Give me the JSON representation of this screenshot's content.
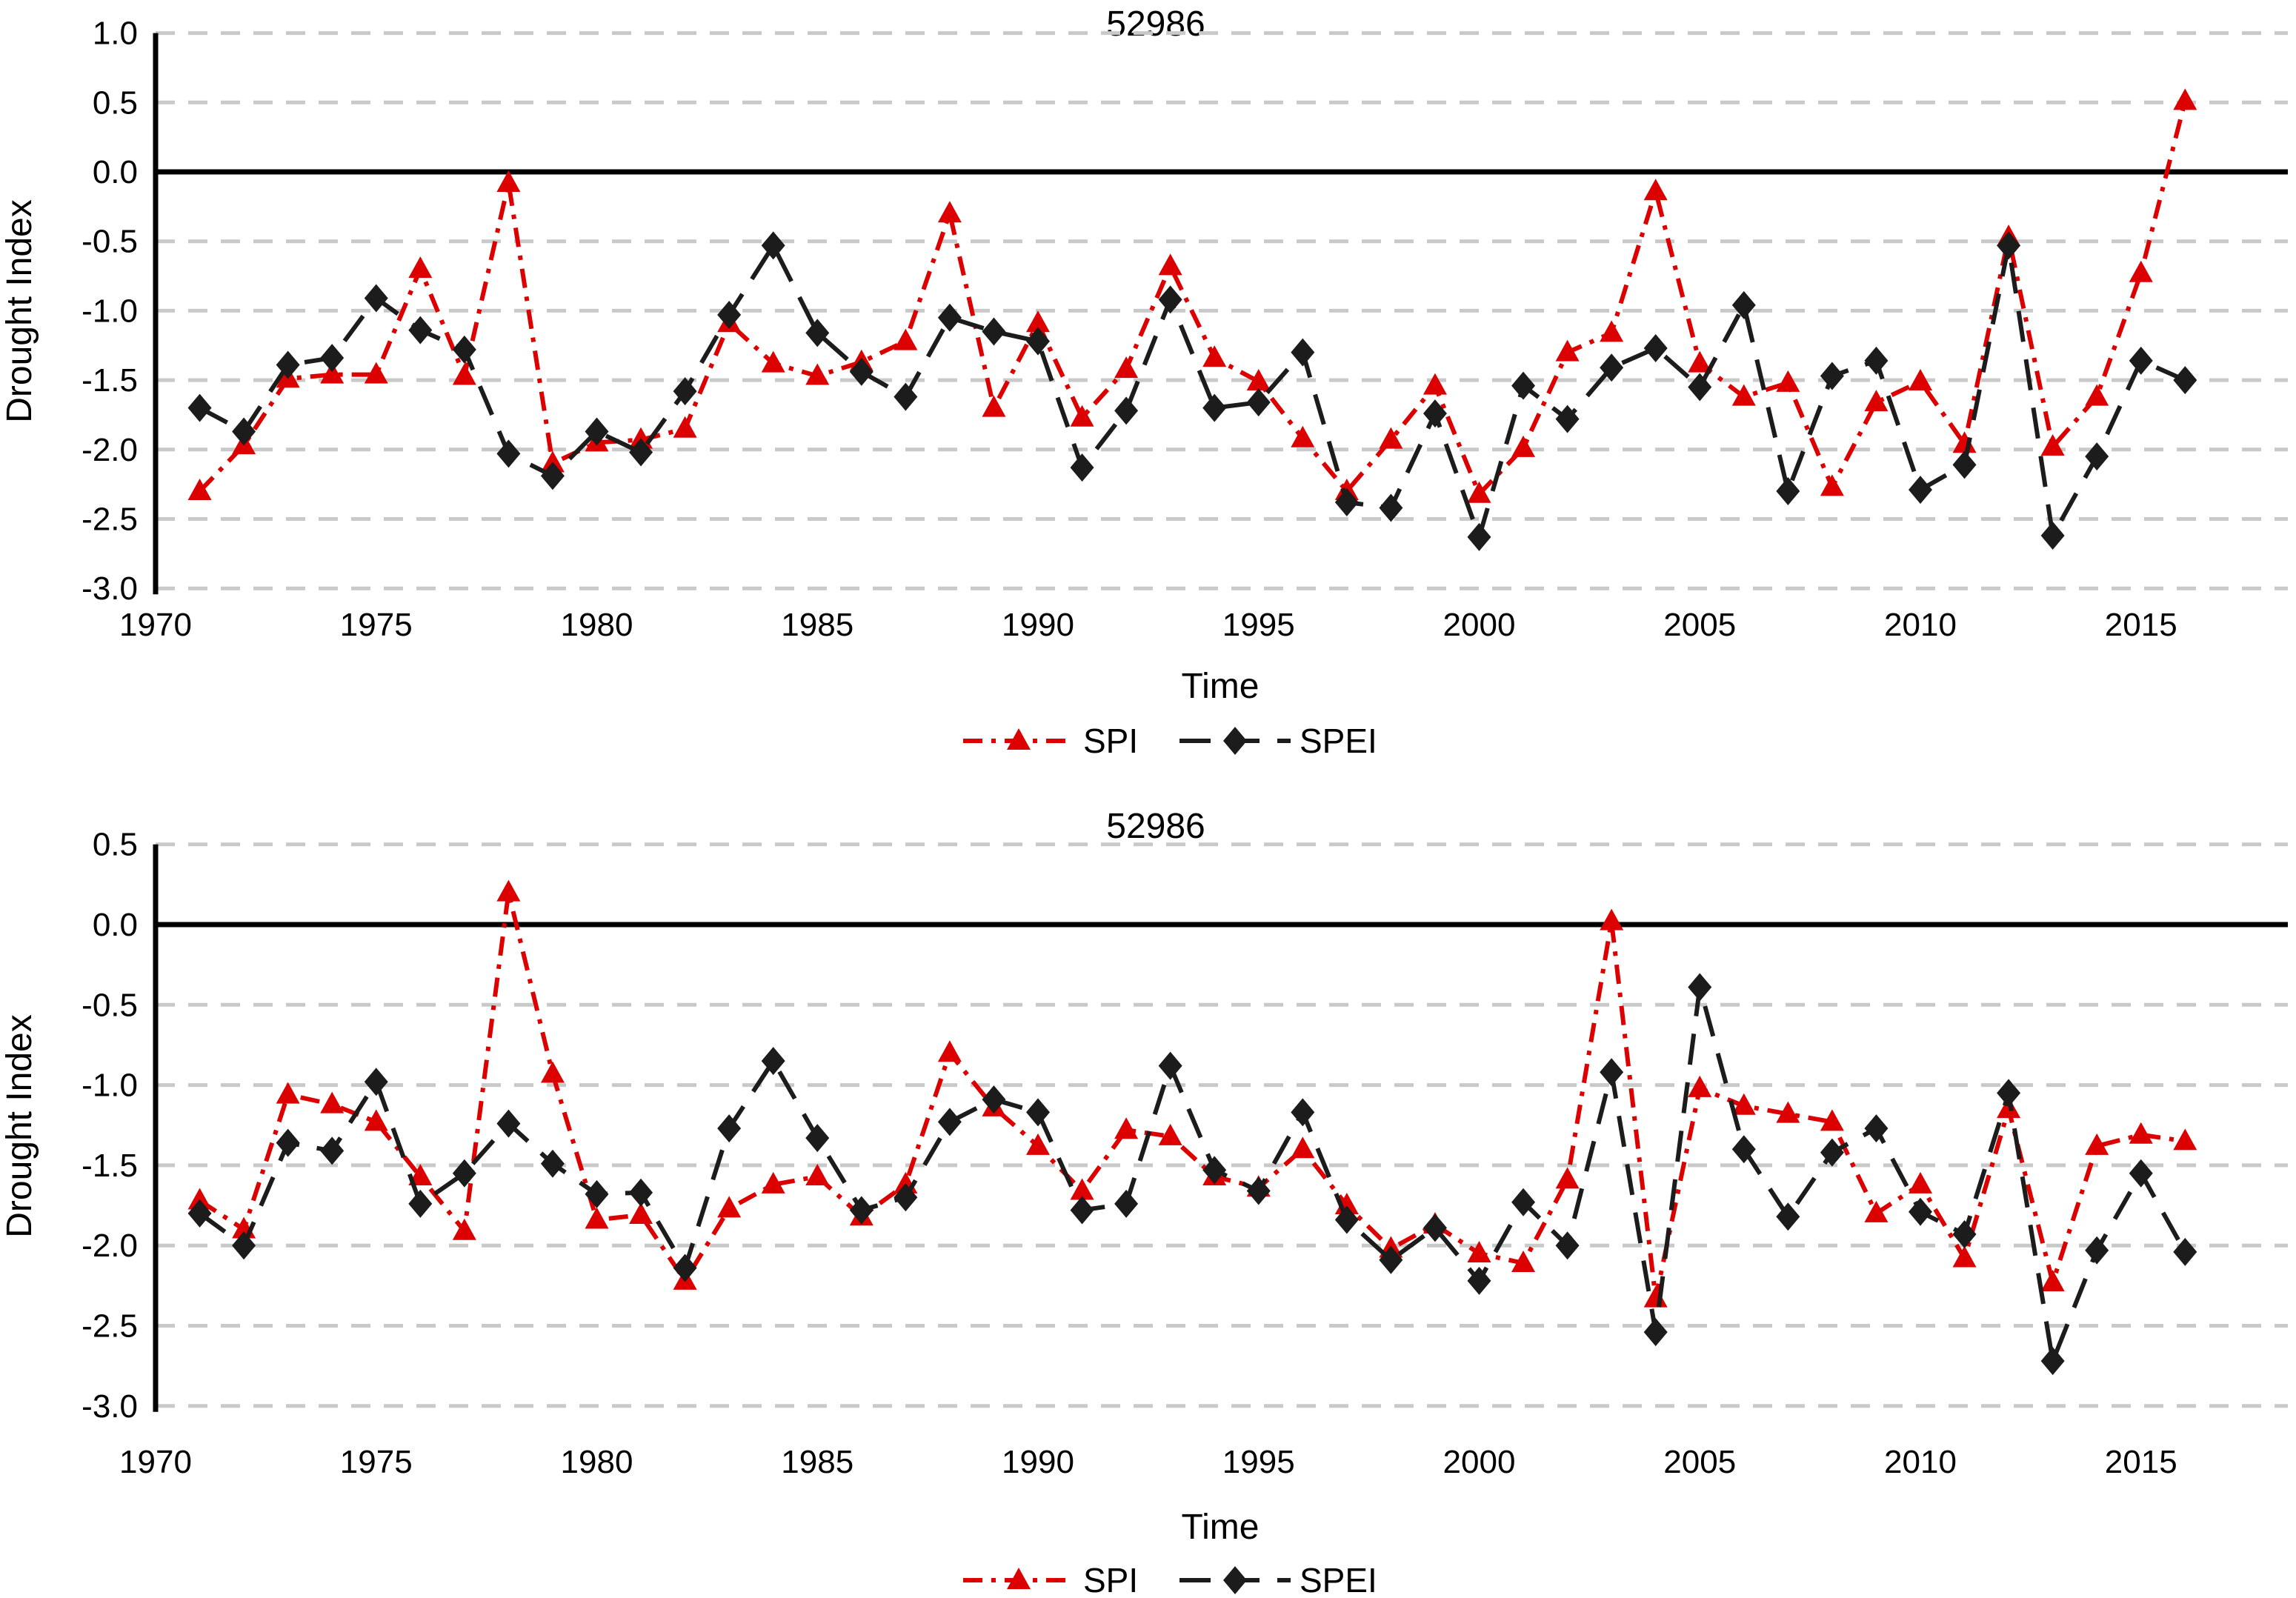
{
  "page": {
    "background": "#ffffff"
  },
  "chart_data": [
    {
      "type": "line",
      "title": "52986",
      "xlabel": "Time",
      "ylabel": "Drought Index",
      "ylim": [
        -3.0,
        1.0
      ],
      "yticks": [
        1.0,
        0.5,
        0.0,
        -0.5,
        -1.0,
        -1.5,
        -2.0,
        -2.5,
        -3.0
      ],
      "xticks": [
        1970,
        1975,
        1980,
        1985,
        1990,
        1995,
        2000,
        2005,
        2010,
        2015
      ],
      "zero_line": true,
      "grid": "dashed-horizontal",
      "grid_color": "#C9C9C9",
      "legend_position": "bottom-center",
      "x": [
        1971,
        1972,
        1973,
        1974,
        1975,
        1976,
        1977,
        1978,
        1979,
        1980,
        1981,
        1982,
        1983,
        1984,
        1985,
        1986,
        1987,
        1988,
        1989,
        1990,
        1991,
        1992,
        1993,
        1994,
        1995,
        1996,
        1997,
        1998,
        1999,
        2000,
        2001,
        2002,
        2003,
        2004,
        2005,
        2006,
        2007,
        2008,
        2009,
        2010,
        2011,
        2012,
        2013,
        2014,
        2015,
        2016
      ],
      "series": [
        {
          "name": "SPI",
          "color": "#DC0000",
          "marker": "triangle",
          "line_style": "dash-dot",
          "values": [
            -2.3,
            -1.97,
            -1.49,
            -1.46,
            -1.46,
            -0.7,
            -1.47,
            -0.08,
            -2.1,
            -1.95,
            -1.93,
            -1.85,
            -1.09,
            -1.38,
            -1.47,
            -1.37,
            -1.22,
            -0.3,
            -1.7,
            -1.09,
            -1.77,
            -1.42,
            -0.68,
            -1.34,
            -1.51,
            -1.92,
            -2.3,
            -1.93,
            -1.54,
            -2.32,
            -1.99,
            -1.3,
            -1.16,
            -0.14,
            -1.38,
            -1.62,
            -1.52,
            -2.27,
            -1.66,
            -1.51,
            -1.96,
            -0.47,
            -1.98,
            -1.62,
            -0.73,
            0.51
          ]
        },
        {
          "name": "SPEI",
          "color": "#1C1C1C",
          "marker": "diamond",
          "line_style": "dashed",
          "values": [
            -1.7,
            -1.87,
            -1.39,
            -1.34,
            -0.91,
            -1.14,
            -1.28,
            -2.03,
            -2.19,
            -1.87,
            -2.02,
            -1.58,
            -1.03,
            -0.53,
            -1.16,
            -1.44,
            -1.62,
            -1.05,
            -1.15,
            -1.22,
            -2.13,
            -1.72,
            -0.92,
            -1.7,
            -1.66,
            -1.3,
            -2.38,
            -2.42,
            -1.74,
            -2.63,
            -1.54,
            -1.78,
            -1.41,
            -1.27,
            -1.55,
            -0.96,
            -2.3,
            -1.47,
            -1.36,
            -2.29,
            -2.11,
            -0.53,
            -2.62,
            -2.05,
            -1.36,
            -1.5
          ]
        }
      ]
    },
    {
      "type": "line",
      "title": "52986",
      "xlabel": "Time",
      "ylabel": "Drought Index",
      "ylim": [
        -3.0,
        0.5
      ],
      "yticks": [
        0.5,
        0.0,
        -0.5,
        -1.0,
        -1.5,
        -2.0,
        -2.5,
        -3.0
      ],
      "xticks": [
        1970,
        1975,
        1980,
        1985,
        1990,
        1995,
        2000,
        2005,
        2010,
        2015
      ],
      "zero_line": true,
      "grid": "dashed-horizontal",
      "grid_color": "#C9C9C9",
      "legend_position": "bottom-center",
      "x": [
        1971,
        1972,
        1973,
        1974,
        1975,
        1976,
        1977,
        1978,
        1979,
        1980,
        1981,
        1982,
        1983,
        1984,
        1985,
        1986,
        1987,
        1988,
        1989,
        1990,
        1991,
        1992,
        1993,
        1994,
        1995,
        1996,
        1997,
        1998,
        1999,
        2000,
        2001,
        2002,
        2003,
        2004,
        2005,
        2006,
        2007,
        2008,
        2009,
        2010,
        2011,
        2012,
        2013,
        2014,
        2015,
        2016
      ],
      "series": [
        {
          "name": "SPI",
          "color": "#DC0000",
          "marker": "triangle",
          "line_style": "dash-dot",
          "values": [
            -1.72,
            -1.9,
            -1.06,
            -1.12,
            -1.23,
            -1.57,
            -1.91,
            0.2,
            -0.93,
            -1.84,
            -1.81,
            -2.22,
            -1.77,
            -1.62,
            -1.57,
            -1.82,
            -1.62,
            -0.8,
            -1.14,
            -1.38,
            -1.66,
            -1.28,
            -1.32,
            -1.57,
            -1.64,
            -1.4,
            -1.75,
            -2.02,
            -1.87,
            -2.05,
            -2.11,
            -1.59,
            0.02,
            -2.33,
            -1.02,
            -1.13,
            -1.18,
            -1.23,
            -1.8,
            -1.62,
            -2.08,
            -1.15,
            -2.23,
            -1.38,
            -1.31,
            -1.35
          ]
        },
        {
          "name": "SPEI",
          "color": "#1C1C1C",
          "marker": "diamond",
          "line_style": "dashed",
          "values": [
            -1.8,
            -2.0,
            -1.36,
            -1.41,
            -0.98,
            -1.74,
            -1.55,
            -1.24,
            -1.49,
            -1.68,
            -1.67,
            -2.14,
            -1.27,
            -0.85,
            -1.33,
            -1.78,
            -1.7,
            -1.23,
            -1.09,
            -1.17,
            -1.78,
            -1.74,
            -0.88,
            -1.53,
            -1.66,
            -1.17,
            -1.84,
            -2.09,
            -1.89,
            -2.22,
            -1.73,
            -2.0,
            -0.92,
            -2.54,
            -0.39,
            -1.4,
            -1.82,
            -1.42,
            -1.27,
            -1.79,
            -1.93,
            -1.05,
            -2.72,
            -2.03,
            -1.55,
            -2.04
          ]
        }
      ]
    }
  ]
}
